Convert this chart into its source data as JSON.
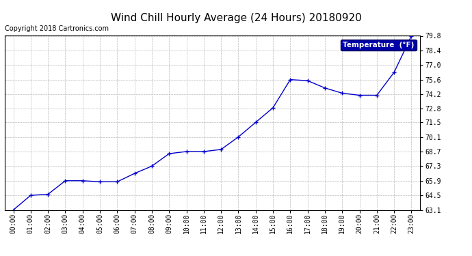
{
  "title": "Wind Chill Hourly Average (24 Hours) 20180920",
  "copyright": "Copyright 2018 Cartronics.com",
  "legend_label": "Temperature  (°F)",
  "x_labels": [
    "00:00",
    "01:00",
    "02:00",
    "03:00",
    "04:00",
    "05:00",
    "06:00",
    "07:00",
    "08:00",
    "09:00",
    "10:00",
    "11:00",
    "12:00",
    "13:00",
    "14:00",
    "15:00",
    "16:00",
    "17:00",
    "18:00",
    "19:00",
    "20:00",
    "21:00",
    "22:00",
    "23:00"
  ],
  "y_values": [
    63.1,
    64.5,
    64.6,
    65.9,
    65.9,
    65.8,
    65.8,
    66.6,
    67.3,
    68.5,
    68.7,
    68.7,
    68.9,
    70.1,
    71.5,
    72.9,
    75.6,
    75.5,
    74.8,
    74.3,
    74.1,
    74.1,
    76.3,
    79.8
  ],
  "ylim_min": 63.1,
  "ylim_max": 79.8,
  "yticks": [
    63.1,
    64.5,
    65.9,
    67.3,
    68.7,
    70.1,
    71.5,
    72.8,
    74.2,
    75.6,
    77.0,
    78.4,
    79.8
  ],
  "line_color": "#0000CC",
  "marker": "+",
  "marker_color": "#0000CC",
  "bg_color": "#ffffff",
  "grid_color": "#bbbbbb",
  "title_fontsize": 11,
  "copyright_fontsize": 7,
  "tick_fontsize": 7,
  "legend_bg": "#0000aa",
  "legend_fg": "#ffffff"
}
